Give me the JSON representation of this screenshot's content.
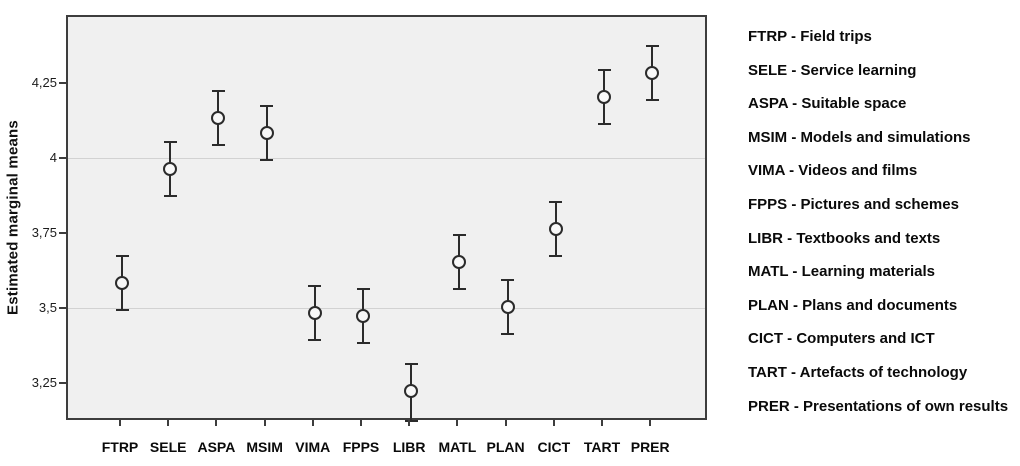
{
  "chart_data": {
    "type": "scatter",
    "subtype": "error-bar-plot",
    "title": "",
    "xlabel": "",
    "ylabel": "Estimated marginal means",
    "categories": [
      "FTRP",
      "SELE",
      "ASPA",
      "MSIM",
      "VIMA",
      "FPPS",
      "LIBR",
      "MATL",
      "PLAN",
      "CICT",
      "TART",
      "PRER"
    ],
    "series": [
      {
        "name": "Estimated marginal means",
        "values": [
          3.59,
          3.97,
          4.14,
          4.09,
          3.49,
          3.48,
          3.23,
          3.66,
          3.51,
          3.77,
          4.21,
          4.29
        ],
        "ci_low": [
          3.5,
          3.88,
          4.05,
          4.0,
          3.4,
          3.39,
          3.13,
          3.57,
          3.42,
          3.68,
          4.12,
          4.2
        ],
        "ci_high": [
          3.68,
          4.06,
          4.23,
          4.18,
          3.58,
          3.57,
          3.32,
          3.75,
          3.6,
          3.86,
          4.3,
          4.38
        ]
      }
    ],
    "ylim": [
      3.125,
      4.475
    ],
    "yticks": [
      {
        "value": 4.25,
        "label": "4,25"
      },
      {
        "value": 4.0,
        "label": "4"
      },
      {
        "value": 3.75,
        "label": "3,75"
      },
      {
        "value": 3.5,
        "label": "3,5"
      },
      {
        "value": 3.25,
        "label": "3,25"
      }
    ],
    "gridlines": [
      4.0,
      3.5
    ],
    "grid": "horizontal lines at 0.5 intervals only",
    "legend_position": "right",
    "marker": "open-circle",
    "plot_background": "#f0f0f0"
  },
  "legend": {
    "items": [
      "FTRP - Field trips",
      "SELE - Service learning",
      "ASPA - Suitable space",
      "MSIM - Models and simulations",
      "VIMA - Videos and films",
      "FPPS - Pictures and schemes",
      "LIBR - Textbooks and texts",
      "MATL - Learning materials",
      "PLAN - Plans and documents",
      "CICT - Computers and ICT",
      "TART - Artefacts of technology",
      "PRER - Presentations of own results"
    ]
  },
  "colors": {
    "plot_fill": "#f0f0f0",
    "frame": "#3d3d3d",
    "gridline": "#d2d2d2",
    "marks": "#2b2b2b",
    "text": "#0a0a0a"
  }
}
